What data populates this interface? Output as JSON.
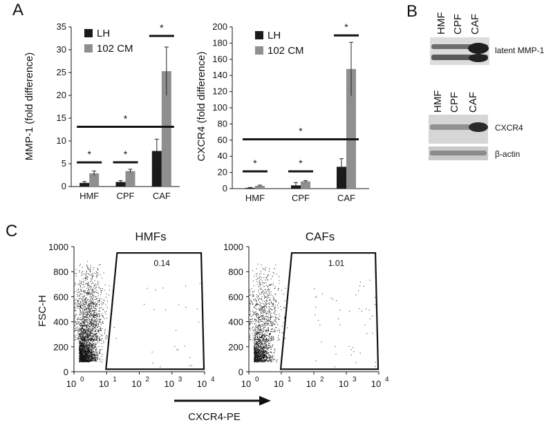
{
  "panel_labels": {
    "a": "A",
    "b": "B",
    "c": "C"
  },
  "colors": {
    "lh": "#1a1a1a",
    "cm": "#8f8f8f",
    "axis": "#111111",
    "dot": "#111111"
  },
  "blot": {
    "top_lanes": [
      "HMF",
      "CPF",
      "CAF"
    ],
    "top_band_label": "latent MMP-1",
    "bottom_lanes": [
      "HMF",
      "CPF",
      "CAF"
    ],
    "bottom_band_labels": [
      "CXCR4",
      "β-actin"
    ]
  },
  "chart_data": [
    {
      "type": "bar",
      "panel": "A",
      "categories": [
        "HMF",
        "CPF",
        "CAF"
      ],
      "series": [
        {
          "name": "LH",
          "values": [
            0.8,
            1.0,
            7.8
          ],
          "errors": [
            0.3,
            0.3,
            2.6
          ]
        },
        {
          "name": "102 CM",
          "values": [
            2.9,
            3.4,
            25.3
          ],
          "errors": [
            0.5,
            0.4,
            5.3
          ]
        }
      ],
      "ylabel": "MMP-1 (fold difference)",
      "ylim": [
        0,
        35
      ],
      "yticks": [
        "0",
        "5",
        "10",
        "15",
        "20",
        "25",
        "30",
        "35"
      ],
      "significance": [
        {
          "label": "*",
          "span": "HMF"
        },
        {
          "label": "*",
          "span": "CPF"
        },
        {
          "label": "*",
          "span": "CAF"
        },
        {
          "label": "*",
          "span": "HMF-CAF"
        }
      ],
      "legend": "top-left"
    },
    {
      "type": "bar",
      "panel": "A",
      "categories": [
        "HMF",
        "CPF",
        "CAF"
      ],
      "series": [
        {
          "name": "LH",
          "values": [
            1.0,
            4.0,
            27.0
          ],
          "errors": [
            0.5,
            3.5,
            10.0
          ]
        },
        {
          "name": "102 CM",
          "values": [
            3.5,
            9.0,
            148.0
          ],
          "errors": [
            0.8,
            1.0,
            33.0
          ]
        }
      ],
      "ylabel": "CXCR4 (fold difference)",
      "ylim": [
        0,
        200
      ],
      "yticks": [
        "0",
        "20",
        "40",
        "60",
        "80",
        "100",
        "120",
        "140",
        "160",
        "180",
        "200"
      ],
      "significance": [
        {
          "label": "*",
          "span": "HMF"
        },
        {
          "label": "*",
          "span": "CPF"
        },
        {
          "label": "*",
          "span": "CAF"
        },
        {
          "label": "*",
          "span": "HMF-CAF"
        }
      ],
      "legend": "top-left"
    },
    {
      "type": "scatter",
      "panel": "C",
      "title": "HMFs",
      "ylabel": "FSC-H",
      "x_scale": "log",
      "xlim": [
        1,
        10000
      ],
      "ylim": [
        0,
        1000
      ],
      "yticks": [
        "0",
        "200",
        "400",
        "600",
        "800",
        "1000"
      ],
      "xticks": [
        {
          "base": "10",
          "exp": "0"
        },
        {
          "base": "10",
          "exp": "1"
        },
        {
          "base": "10",
          "exp": "2"
        },
        {
          "base": "10",
          "exp": "3"
        },
        {
          "base": "10",
          "exp": "4"
        }
      ],
      "gate_percent": "0.14"
    },
    {
      "type": "scatter",
      "panel": "C",
      "title": "CAFs",
      "x_scale": "log",
      "xlim": [
        1,
        10000
      ],
      "ylim": [
        0,
        1000
      ],
      "yticks": [
        "0",
        "200",
        "400",
        "600",
        "800",
        "1000"
      ],
      "xticks": [
        {
          "base": "10",
          "exp": "0"
        },
        {
          "base": "10",
          "exp": "1"
        },
        {
          "base": "10",
          "exp": "2"
        },
        {
          "base": "10",
          "exp": "3"
        },
        {
          "base": "10",
          "exp": "4"
        }
      ],
      "gate_percent": "1.01"
    }
  ],
  "flow_xlabel": "CXCR4-PE"
}
